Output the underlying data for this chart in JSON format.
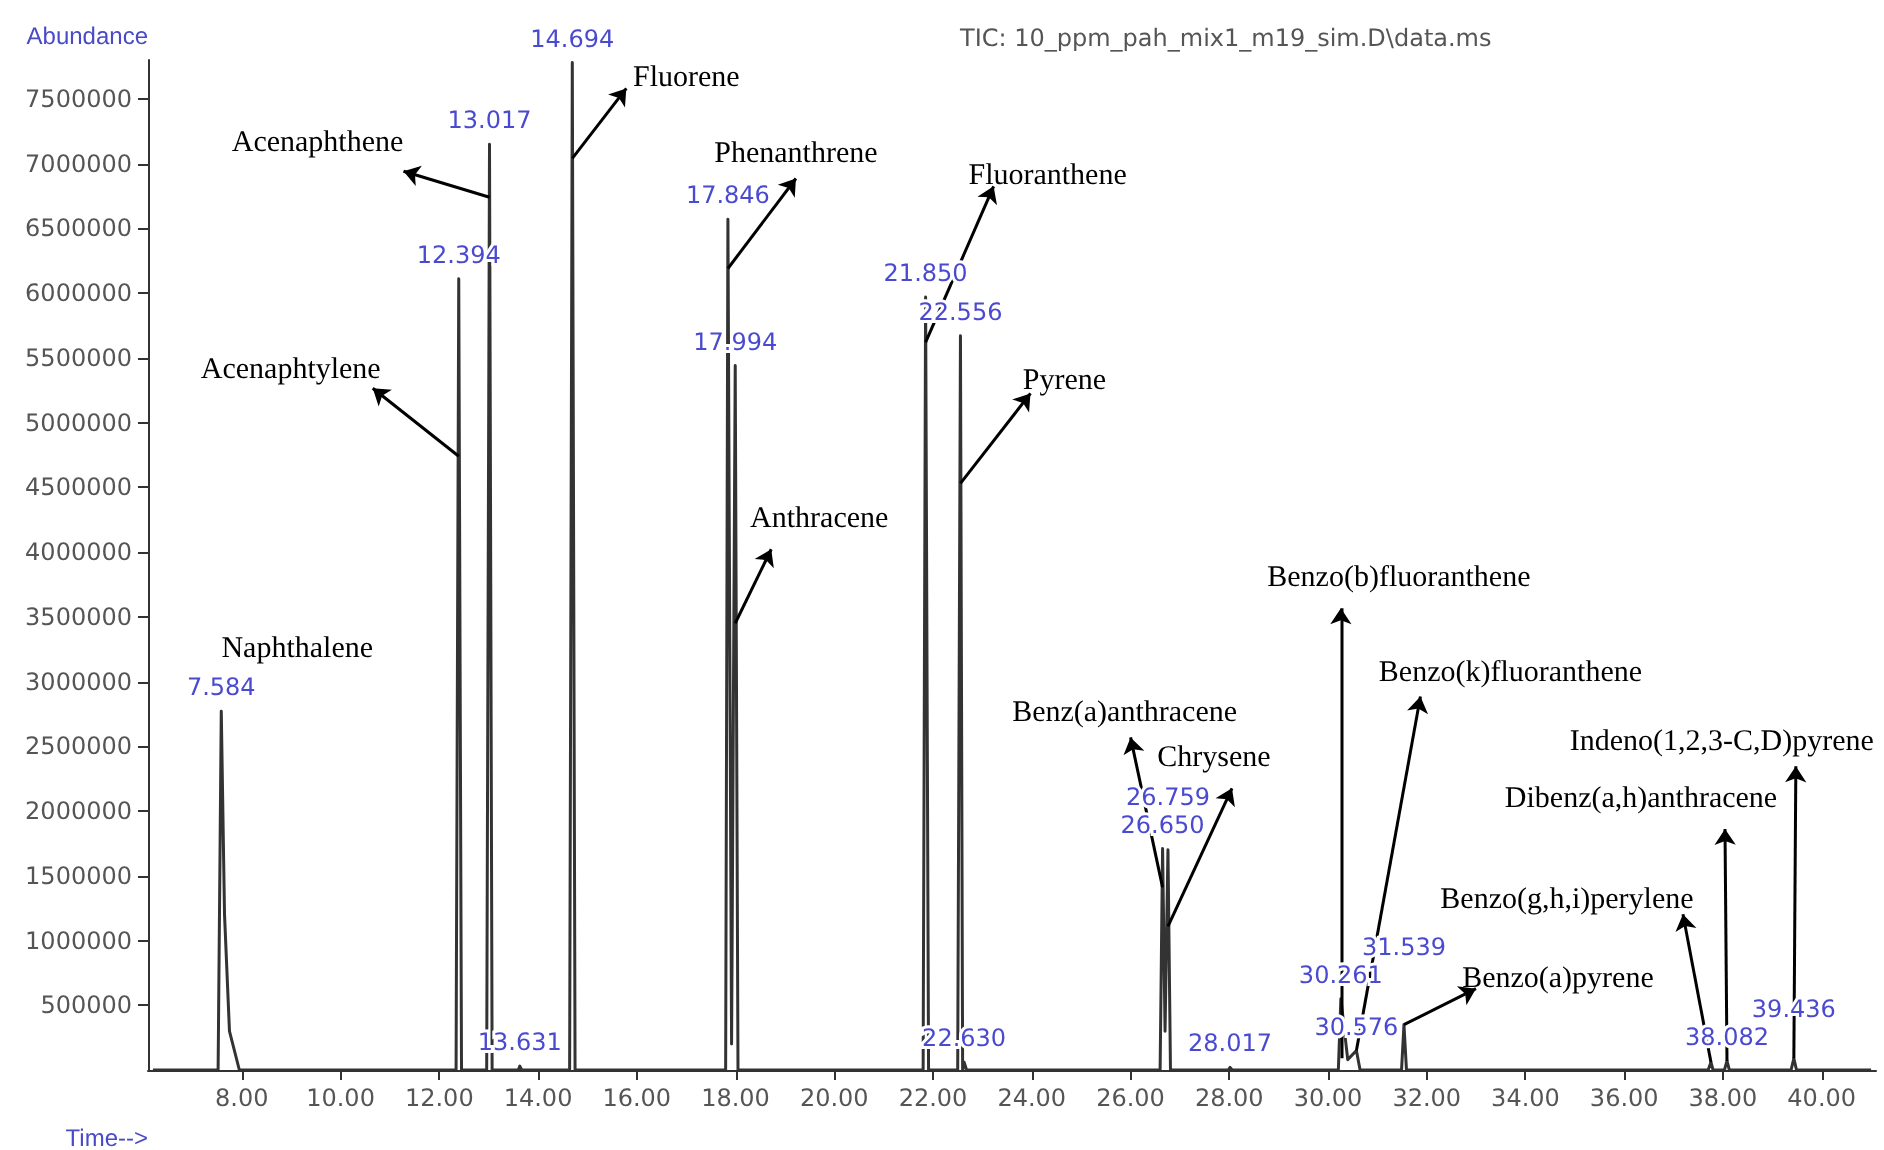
{
  "chart_data": {
    "type": "line",
    "title": "TIC: 10_ppm_pah_mix1_m19_sim.D\\data.ms",
    "xlabel": "Time-->",
    "ylabel": "Abundance",
    "x": [
      6.2,
      7.52,
      7.584,
      7.65,
      7.75,
      7.95,
      12.34,
      12.394,
      12.45,
      12.96,
      13.017,
      13.07,
      13.6,
      13.631,
      13.67,
      14.64,
      14.694,
      14.75,
      17.8,
      17.846,
      17.92,
      17.994,
      18.05,
      21.8,
      21.85,
      21.91,
      22.5,
      22.556,
      22.6,
      22.63,
      22.68,
      26.6,
      26.65,
      26.7,
      26.759,
      26.81,
      27.98,
      28.017,
      28.06,
      30.21,
      30.261,
      30.4,
      30.576,
      30.65,
      31.49,
      31.539,
      31.59,
      37.7,
      37.757,
      37.8,
      38.03,
      38.082,
      38.13,
      39.38,
      39.436,
      39.49,
      41.0
    ],
    "series": [
      {
        "color": "#333333",
        "values": [
          0,
          0,
          2770000,
          1200000,
          300000,
          0,
          0,
          6110000,
          0,
          0,
          7150000,
          0,
          0,
          30000,
          0,
          0,
          7780000,
          0,
          0,
          6570000,
          200000,
          5440000,
          0,
          0,
          5970000,
          0,
          0,
          5670000,
          0,
          60000,
          0,
          0,
          1710000,
          300000,
          1700000,
          0,
          0,
          20000,
          0,
          0,
          550000,
          80000,
          150000,
          0,
          0,
          350000,
          0,
          0,
          60000,
          0,
          0,
          70000,
          0,
          0,
          90000,
          0,
          0
        ]
      }
    ],
    "xlim": [
      6.1,
      41.1
    ],
    "ylim": [
      0,
      7800000
    ],
    "xticks": [
      {
        "value": 8,
        "label": "8.00"
      },
      {
        "value": 10,
        "label": "10.00"
      },
      {
        "value": 12,
        "label": "12.00"
      },
      {
        "value": 14,
        "label": "14.00"
      },
      {
        "value": 16,
        "label": "16.00"
      },
      {
        "value": 18,
        "label": "18.00"
      },
      {
        "value": 20,
        "label": "20.00"
      },
      {
        "value": 22,
        "label": "22.00"
      },
      {
        "value": 24,
        "label": "24.00"
      },
      {
        "value": 26,
        "label": "26.00"
      },
      {
        "value": 28,
        "label": "28.00"
      },
      {
        "value": 30,
        "label": "30.00"
      },
      {
        "value": 32,
        "label": "32.00"
      },
      {
        "value": 34,
        "label": "34.00"
      },
      {
        "value": 36,
        "label": "36.00"
      },
      {
        "value": 38,
        "label": "38.00"
      },
      {
        "value": 40,
        "label": "40.00"
      }
    ],
    "yticks": [
      500000,
      1000000,
      1500000,
      2000000,
      2500000,
      3000000,
      3500000,
      4000000,
      4500000,
      5000000,
      5500000,
      6000000,
      6500000,
      7000000,
      7500000
    ],
    "annotations": [
      {
        "text": "Naphthalene",
        "x": 7.584,
        "y": 2770000
      },
      {
        "text": "Acenaphtylene",
        "x": 12.394,
        "y": 4740000
      },
      {
        "text": "Acenaphthene",
        "x": 13.017,
        "y": 6740000
      },
      {
        "text": "Fluorene",
        "x": 14.694,
        "y": 7040000
      },
      {
        "text": "Phenanthrene",
        "x": 17.846,
        "y": 6190000
      },
      {
        "text": "Anthracene",
        "x": 17.994,
        "y": 3450000
      },
      {
        "text": "Fluoranthene",
        "x": 21.85,
        "y": 5620000
      },
      {
        "text": "Pyrene",
        "x": 22.556,
        "y": 4530000
      },
      {
        "text": "Benz(a)anthracene",
        "x": 26.65,
        "y": 1410000
      },
      {
        "text": "Chrysene",
        "x": 26.759,
        "y": 1110000
      },
      {
        "text": "Benzo(b)fluoranthene",
        "x": 30.261,
        "y": 90000
      },
      {
        "text": "Benzo(k)fluoranthene",
        "x": 30.576,
        "y": 150000
      },
      {
        "text": "Benzo(a)pyrene",
        "x": 31.539,
        "y": 350000
      },
      {
        "text": "Benzo(g,h,i)perylene",
        "x": 37.757,
        "y": 60000
      },
      {
        "text": "Dibenz(a,h)anthracene",
        "x": 38.082,
        "y": 70000
      },
      {
        "text": "Indeno(1,2,3-C,D)pyrene",
        "x": 39.436,
        "y": 90000
      },
      {
        "text": "7.584",
        "x": 7.584,
        "y": 2770000
      },
      {
        "text": "12.394",
        "x": 12.394,
        "y": 6110000
      },
      {
        "text": "13.017",
        "x": 13.017,
        "y": 7150000
      },
      {
        "text": "13.631",
        "x": 13.631,
        "y": 30000
      },
      {
        "text": "14.694",
        "x": 14.694,
        "y": 7780000
      },
      {
        "text": "17.846",
        "x": 17.846,
        "y": 6570000
      },
      {
        "text": "17.994",
        "x": 17.994,
        "y": 5440000
      },
      {
        "text": "21.850",
        "x": 21.85,
        "y": 5970000
      },
      {
        "text": "22.556",
        "x": 22.556,
        "y": 5670000
      },
      {
        "text": "22.630",
        "x": 22.63,
        "y": 60000
      },
      {
        "text": "26.650",
        "x": 26.65,
        "y": 1710000
      },
      {
        "text": "26.759",
        "x": 26.759,
        "y": 1700000
      },
      {
        "text": "28.017",
        "x": 28.017,
        "y": 20000
      },
      {
        "text": "30.261",
        "x": 30.261,
        "y": 550000
      },
      {
        "text": "30.576",
        "x": 30.576,
        "y": 150000
      },
      {
        "text": "31.539",
        "x": 31.539,
        "y": 350000
      },
      {
        "text": "38.082",
        "x": 38.082,
        "y": 70000
      },
      {
        "text": "39.436",
        "x": 39.436,
        "y": 90000
      }
    ]
  }
}
